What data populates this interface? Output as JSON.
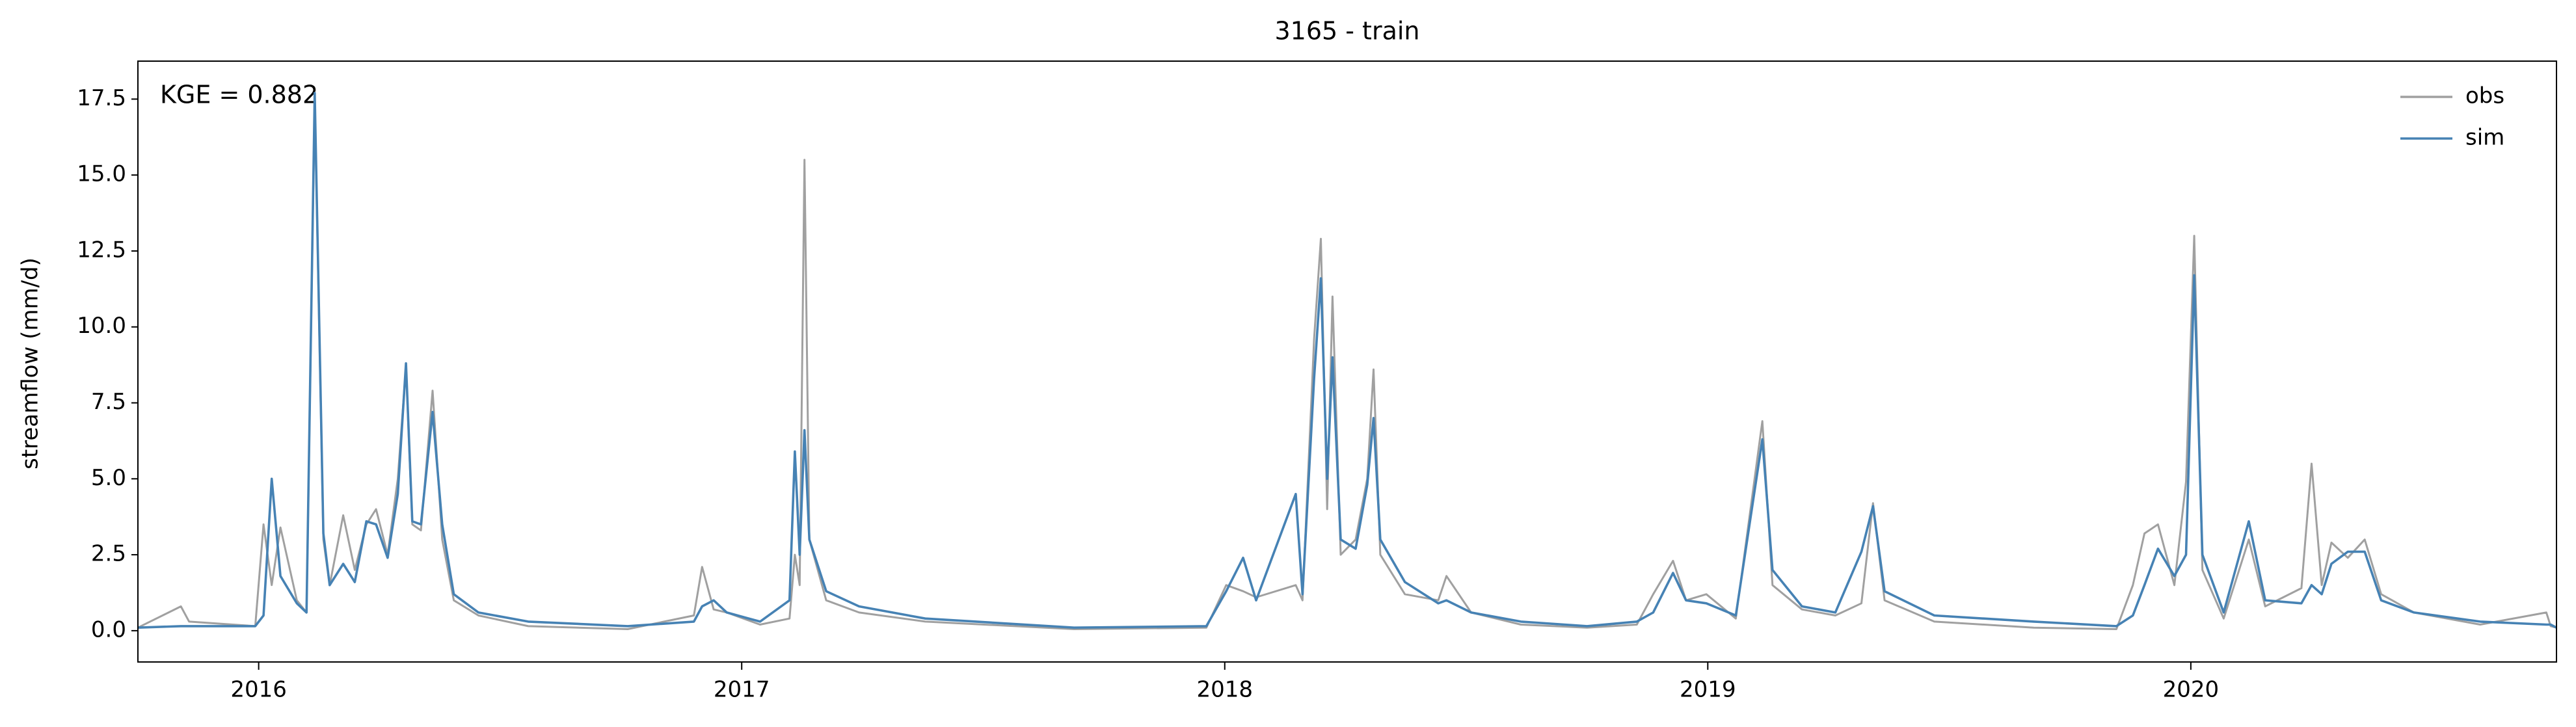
{
  "chart_data": {
    "type": "line",
    "title": "3165 - train",
    "ylabel": "streamflow (mm/d)",
    "annotation": "KGE = 0.882",
    "legend": "upper right",
    "xlim": [
      2015.75,
      2020.757
    ],
    "xticks": [
      2016,
      2017,
      2018,
      2019,
      2020
    ],
    "ylim": [
      -1.03,
      18.75
    ],
    "yticks": [
      {
        "value": 0,
        "label": "0.0"
      },
      {
        "value": 2.5,
        "label": "2.5"
      },
      {
        "value": 5,
        "label": "5.0"
      },
      {
        "value": 7.5,
        "label": "7.5"
      },
      {
        "value": 10,
        "label": "10.0"
      },
      {
        "value": 12.5,
        "label": "12.5"
      },
      {
        "value": 15,
        "label": "15.0"
      },
      {
        "value": 17.5,
        "label": "17.5"
      }
    ],
    "x": [
      2015.75,
      2015.839,
      2015.856,
      2015.993,
      2016.01,
      2016.027,
      2016.045,
      2016.079,
      2016.099,
      2016.116,
      2016.134,
      2016.147,
      2016.175,
      2016.199,
      2016.223,
      2016.243,
      2016.267,
      2016.288,
      2016.305,
      2016.318,
      2016.336,
      2016.36,
      2016.38,
      2016.404,
      2016.455,
      2016.558,
      2016.764,
      2016.901,
      2016.918,
      2016.942,
      2016.969,
      2017.038,
      2017.099,
      2017.11,
      2017.12,
      2017.13,
      2017.14,
      2017.175,
      2017.243,
      2017.38,
      2017.688,
      2017.962,
      2018.003,
      2018.038,
      2018.065,
      2018.147,
      2018.161,
      2018.185,
      2018.199,
      2018.212,
      2018.223,
      2018.24,
      2018.271,
      2018.295,
      2018.308,
      2018.322,
      2018.373,
      2018.442,
      2018.459,
      2018.51,
      2018.613,
      2018.75,
      2018.853,
      2018.887,
      2018.928,
      2018.955,
      2018.997,
      2019.058,
      2019.113,
      2019.134,
      2019.195,
      2019.264,
      2019.318,
      2019.342,
      2019.366,
      2019.469,
      2019.675,
      2019.846,
      2019.88,
      2019.904,
      2019.932,
      2019.966,
      2019.99,
      2020.007,
      2020.024,
      2020.068,
      2020.12,
      2020.154,
      2020.229,
      2020.25,
      2020.271,
      2020.291,
      2020.325,
      2020.36,
      2020.394,
      2020.462,
      2020.599,
      2020.736,
      2020.745,
      2020.757
    ],
    "series": [
      {
        "name": "obs",
        "color": "#a0a0a0",
        "values": [
          0.1,
          0.8,
          0.3,
          0.15,
          3.5,
          1.5,
          3.4,
          1.0,
          0.6,
          17.5,
          3.0,
          1.5,
          3.8,
          2.0,
          3.5,
          4.0,
          2.5,
          5.0,
          8.7,
          3.5,
          3.3,
          7.9,
          3.0,
          1.0,
          0.5,
          0.15,
          0.05,
          0.5,
          2.1,
          0.7,
          0.6,
          0.2,
          0.4,
          2.5,
          1.5,
          15.5,
          3.0,
          1.0,
          0.6,
          0.3,
          0.05,
          0.1,
          1.5,
          1.3,
          1.1,
          1.5,
          1.0,
          9.6,
          12.9,
          4.0,
          11.0,
          2.5,
          3.0,
          5.0,
          8.6,
          2.5,
          1.2,
          1.0,
          1.8,
          0.6,
          0.2,
          0.1,
          0.2,
          1.2,
          2.3,
          1.0,
          1.2,
          0.4,
          6.9,
          1.5,
          0.7,
          0.5,
          0.9,
          4.2,
          1.0,
          0.3,
          0.1,
          0.05,
          1.5,
          3.2,
          3.5,
          1.5,
          4.9,
          13.0,
          2.0,
          0.4,
          3.0,
          0.8,
          1.4,
          5.5,
          1.5,
          2.9,
          2.4,
          3.0,
          1.2,
          0.6,
          0.2,
          0.6,
          0.15,
          0.1
        ]
      },
      {
        "name": "sim",
        "color": "#4682b4",
        "values": [
          0.1,
          0.15,
          0.15,
          0.15,
          0.5,
          5.0,
          1.8,
          0.9,
          0.6,
          17.7,
          3.2,
          1.5,
          2.2,
          1.6,
          3.6,
          3.5,
          2.4,
          4.5,
          8.8,
          3.6,
          3.5,
          7.2,
          3.5,
          1.2,
          0.6,
          0.3,
          0.15,
          0.3,
          0.8,
          1.0,
          0.6,
          0.3,
          1.0,
          5.9,
          2.5,
          6.6,
          3.0,
          1.3,
          0.8,
          0.4,
          0.1,
          0.15,
          1.3,
          2.4,
          1.0,
          4.5,
          1.2,
          8.3,
          11.6,
          5.0,
          9.0,
          3.0,
          2.7,
          4.8,
          7.0,
          3.0,
          1.6,
          0.9,
          1.0,
          0.6,
          0.3,
          0.15,
          0.3,
          0.6,
          1.9,
          1.0,
          0.9,
          0.5,
          6.3,
          2.0,
          0.8,
          0.6,
          2.6,
          4.1,
          1.3,
          0.5,
          0.3,
          0.15,
          0.5,
          1.5,
          2.7,
          1.8,
          2.5,
          11.7,
          2.5,
          0.6,
          3.6,
          1.0,
          0.9,
          1.5,
          1.2,
          2.2,
          2.6,
          2.6,
          1.0,
          0.6,
          0.3,
          0.2,
          0.2,
          0.1
        ]
      }
    ]
  }
}
